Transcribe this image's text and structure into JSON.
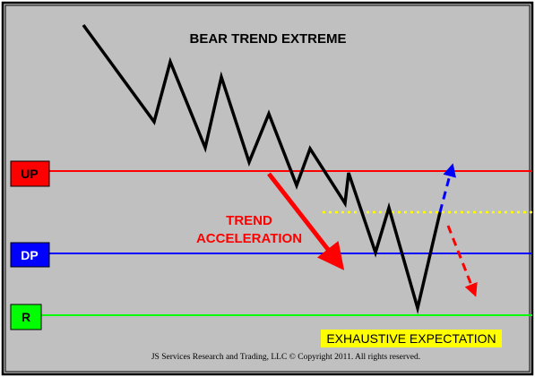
{
  "title": "BEAR TREND EXTREME",
  "levels": [
    {
      "key": "up",
      "label": "UP",
      "color": "#ff0000"
    },
    {
      "key": "dp",
      "label": "DP",
      "color": "#0000ff"
    },
    {
      "key": "r",
      "label": "R",
      "color": "#00ff00"
    }
  ],
  "trend_label_line1": "TREND",
  "trend_label_line2": "ACCELERATION",
  "exhaustive_label": "EXHAUSTIVE EXPECTATION",
  "footer": "JS Services Research  and Trading, LLC © Copyright 2011. All rights reserved.",
  "colors": {
    "background": "#c0c0c0",
    "frame": "#000000",
    "price_line": "#000000",
    "up_line": "#ff0000",
    "dp_line": "#0000ff",
    "r_line": "#00ff00",
    "dotted_line": "#ffff00",
    "exhaustive_bg": "#ffff00",
    "arrow_up": "#0000ff",
    "arrow_down": "#ff0000"
  }
}
